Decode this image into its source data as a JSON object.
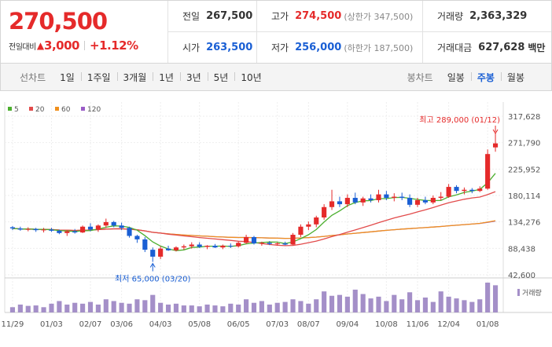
{
  "price": {
    "current": "270,500",
    "change_label": "전일대비",
    "change_arrow": "▲",
    "change_amount": "3,000",
    "change_pct": "+1.12%"
  },
  "stats": {
    "prev_close": {
      "label": "전일",
      "value": "267,500"
    },
    "high": {
      "label": "고가",
      "value": "274,500",
      "sub": "(상한가 347,500)"
    },
    "volume": {
      "label": "거래량",
      "value": "2,363,329"
    },
    "open": {
      "label": "시가",
      "value": "263,500"
    },
    "low": {
      "label": "저가",
      "value": "256,000",
      "sub": "(하한가 187,500)"
    },
    "trade_value": {
      "label": "거래대금",
      "value": "627,628",
      "unit": "백만"
    }
  },
  "nav": {
    "line_label": "선차트",
    "periods": [
      "1일",
      "1주일",
      "3개월",
      "1년",
      "3년",
      "5년",
      "10년"
    ],
    "candle_label": "봉차트",
    "candle_periods": [
      "일봉",
      "주봉",
      "월봉"
    ],
    "active_candle": "주봉"
  },
  "colors": {
    "up": "#e52a2a",
    "down": "#1a5fd4",
    "ma5": "#4caf2f",
    "ma20": "#e24b4b",
    "ma60": "#f0901e",
    "ma120": "#9a5cc7",
    "volume": "#a48fc8"
  },
  "chart_data": {
    "type": "candlestick",
    "legend": [
      {
        "name": "5",
        "color": "#4caf2f"
      },
      {
        "name": "20",
        "color": "#e24b4b"
      },
      {
        "name": "60",
        "color": "#f0901e"
      },
      {
        "name": "120",
        "color": "#9a5cc7"
      }
    ],
    "y_ticks": [
      "317,628",
      "271,790",
      "225,952",
      "180,114",
      "134,276",
      "88,438",
      "42,600"
    ],
    "y_range": [
      42600,
      317628
    ],
    "x_ticks": [
      "11/29",
      "01/03",
      "02/07",
      "03/06",
      "04/03",
      "05/08",
      "06/05",
      "07/03",
      "08/07",
      "09/04",
      "10/08",
      "11/06",
      "12/04",
      "01/08"
    ],
    "annotations": {
      "high": "최고 289,000 (01/12)",
      "low": "최저 65,000 (03/20)"
    },
    "volume_label": "거래량",
    "candles": [
      [
        125000,
        127000,
        120000,
        123000
      ],
      [
        123000,
        126000,
        119000,
        121000
      ],
      [
        121000,
        125000,
        118000,
        122000
      ],
      [
        122000,
        124000,
        117000,
        120000
      ],
      [
        120000,
        124000,
        116000,
        121000
      ],
      [
        121000,
        124000,
        117000,
        119000
      ],
      [
        119000,
        121000,
        113000,
        115000
      ],
      [
        115000,
        120000,
        110000,
        118000
      ],
      [
        118000,
        122000,
        114000,
        116000
      ],
      [
        116000,
        128000,
        115000,
        126000
      ],
      [
        126000,
        132000,
        118000,
        121000
      ],
      [
        121000,
        130000,
        117000,
        128000
      ],
      [
        128000,
        140000,
        124000,
        134000
      ],
      [
        134000,
        136000,
        125000,
        128000
      ],
      [
        128000,
        133000,
        120000,
        124000
      ],
      [
        124000,
        126000,
        107000,
        110000
      ],
      [
        110000,
        112000,
        98000,
        104000
      ],
      [
        104000,
        108000,
        82000,
        86000
      ],
      [
        86000,
        90000,
        65000,
        74000
      ],
      [
        74000,
        92000,
        70000,
        88000
      ],
      [
        88000,
        93000,
        84000,
        85000
      ],
      [
        85000,
        92000,
        83000,
        90000
      ],
      [
        90000,
        95000,
        86000,
        92000
      ],
      [
        92000,
        99000,
        88000,
        95000
      ],
      [
        95000,
        99000,
        89000,
        91000
      ],
      [
        91000,
        94000,
        87000,
        93000
      ],
      [
        93000,
        96000,
        89000,
        90000
      ],
      [
        90000,
        95000,
        87000,
        93000
      ],
      [
        93000,
        97000,
        89000,
        92000
      ],
      [
        92000,
        100000,
        90000,
        98000
      ],
      [
        98000,
        112000,
        96000,
        108000
      ],
      [
        108000,
        110000,
        95000,
        97000
      ],
      [
        97000,
        100000,
        93000,
        98000
      ],
      [
        98000,
        101000,
        94000,
        96000
      ],
      [
        96000,
        99000,
        93000,
        97000
      ],
      [
        97000,
        100000,
        94000,
        95000
      ],
      [
        95000,
        115000,
        94000,
        112000
      ],
      [
        112000,
        130000,
        108000,
        126000
      ],
      [
        126000,
        135000,
        120000,
        130000
      ],
      [
        130000,
        145000,
        125000,
        142000
      ],
      [
        142000,
        165000,
        138000,
        160000
      ],
      [
        160000,
        190000,
        155000,
        170000
      ],
      [
        170000,
        178000,
        160000,
        165000
      ],
      [
        165000,
        182000,
        160000,
        176000
      ],
      [
        176000,
        185000,
        165000,
        168000
      ],
      [
        168000,
        178000,
        162000,
        175000
      ],
      [
        175000,
        182000,
        168000,
        172000
      ],
      [
        172000,
        190000,
        168000,
        182000
      ],
      [
        182000,
        188000,
        172000,
        176000
      ],
      [
        176000,
        184000,
        170000,
        178000
      ],
      [
        178000,
        185000,
        172000,
        176000
      ],
      [
        176000,
        182000,
        160000,
        164000
      ],
      [
        164000,
        176000,
        160000,
        172000
      ],
      [
        172000,
        178000,
        165000,
        168000
      ],
      [
        168000,
        180000,
        165000,
        176000
      ],
      [
        176000,
        186000,
        172000,
        178000
      ],
      [
        178000,
        200000,
        176000,
        195000
      ],
      [
        195000,
        198000,
        184000,
        188000
      ],
      [
        188000,
        194000,
        182000,
        190000
      ],
      [
        190000,
        193000,
        184000,
        188000
      ],
      [
        188000,
        196000,
        186000,
        192000
      ],
      [
        192000,
        260000,
        190000,
        252000
      ],
      [
        263500,
        289000,
        256000,
        270500
      ]
    ],
    "volume": [
      12,
      18,
      15,
      16,
      12,
      20,
      26,
      18,
      22,
      20,
      24,
      18,
      30,
      26,
      22,
      20,
      30,
      28,
      40,
      22,
      18,
      20,
      16,
      16,
      14,
      18,
      16,
      14,
      20,
      18,
      30,
      22,
      26,
      18,
      22,
      24,
      30,
      26,
      20,
      30,
      48,
      38,
      40,
      36,
      52,
      42,
      32,
      36,
      26,
      40,
      30,
      46,
      28,
      34,
      24,
      48,
      36,
      32,
      28,
      24,
      30,
      68,
      62
    ]
  }
}
